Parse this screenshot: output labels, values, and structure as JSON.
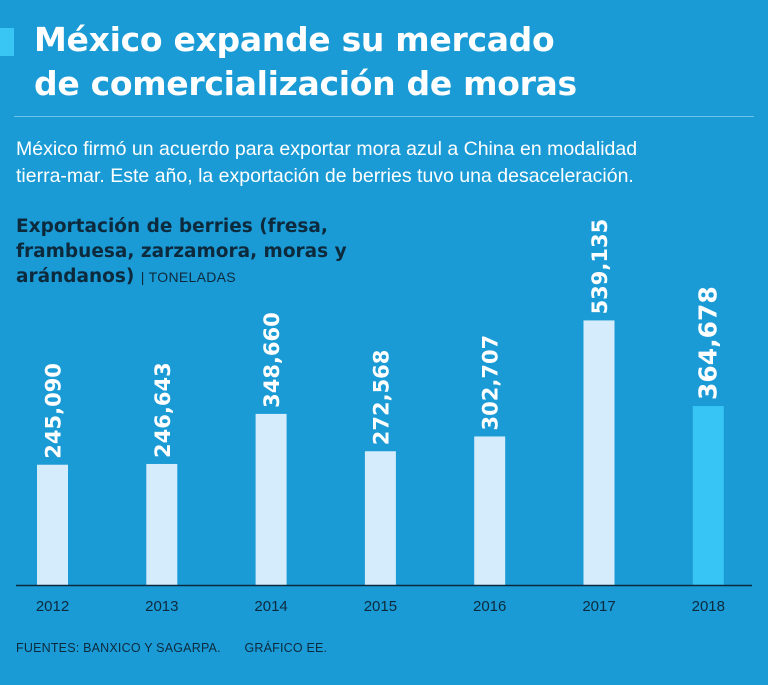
{
  "header": {
    "title_line1": "México expande su mercado",
    "title_line2": "de comercialización de moras",
    "subtitle_line1": "México firmó un acuerdo para exportar mora azul a China en modalidad",
    "subtitle_line2": "tierra-mar. Este año, la exportación de berries tuvo una desaceleración."
  },
  "chart_data": {
    "type": "bar",
    "title_line1": "Exportación de berries (fresa,",
    "title_line2": "frambuesa, zarzamora, moras y",
    "title_line3": "arándanos)",
    "unit": "| TONELADAS",
    "categories": [
      "2012",
      "2013",
      "2014",
      "2015",
      "2016",
      "2017",
      "2018"
    ],
    "values": [
      245090,
      246643,
      348660,
      272568,
      302707,
      539135,
      364678
    ],
    "labels": [
      "245,090",
      "246,643",
      "348,660",
      "272,568",
      "302,707",
      "539,135",
      "364,678"
    ],
    "highlight_index": 6,
    "ylim": [
      0,
      540000
    ],
    "grid": false
  },
  "colors": {
    "background": "#1a9bd6",
    "bar": "#d4ecfb",
    "bar_highlight": "#36c5f5",
    "axis": "#0d2a3d",
    "dark_text": "#0d2a3d",
    "accent": "#39c6f4"
  },
  "footer": {
    "sources": "FUENTES: BANXICO Y SAGARPA.",
    "credit": "GRÁFICO EE."
  }
}
